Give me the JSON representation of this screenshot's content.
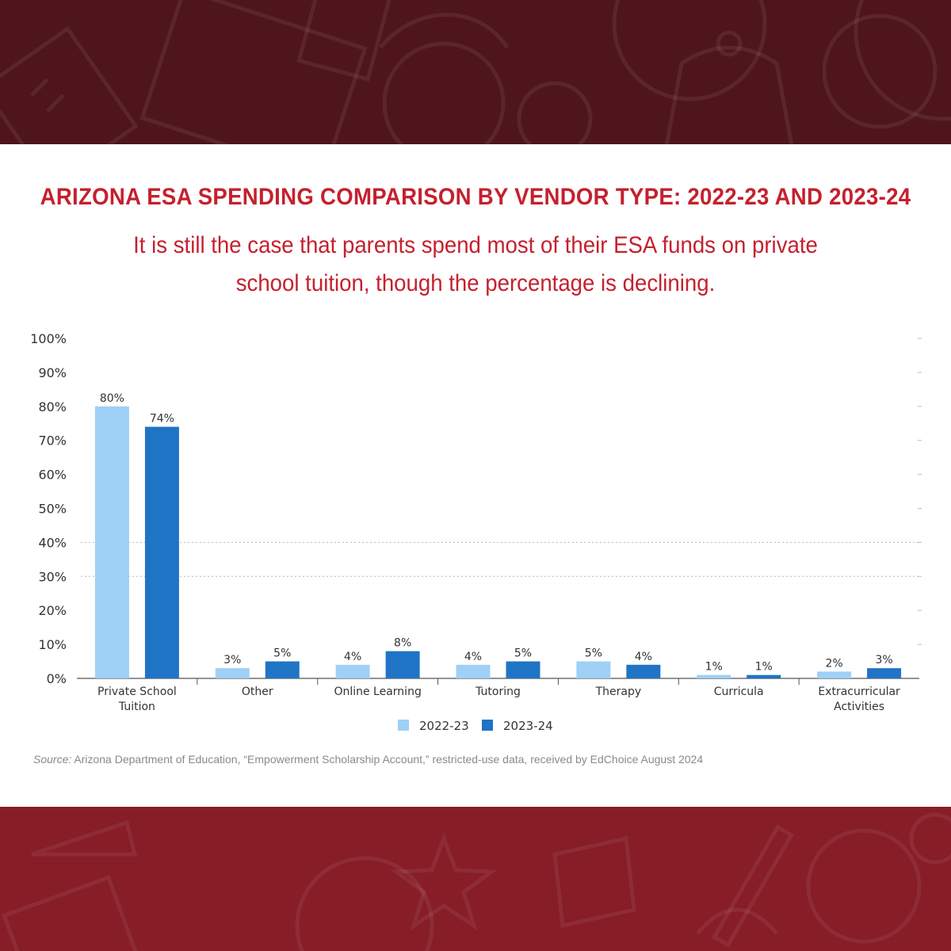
{
  "header": {
    "title": "ARIZONA ESA SPENDING COMPARISON BY VENDOR TYPE: 2022-23 AND 2023-24",
    "subtitle": "It is still the case that parents spend most of their ESA funds on private school tuition, though the percentage is declining."
  },
  "colors": {
    "top_band": "#4e151d",
    "bottom_band": "#861d27",
    "title": "#c5202e",
    "series_2022": "#9fd0f5",
    "series_2023": "#2074c6"
  },
  "chart_data": {
    "type": "bar",
    "title": "ARIZONA ESA SPENDING COMPARISON BY VENDOR TYPE: 2022-23 AND 2023-24",
    "categories": [
      [
        "Private School",
        "Tuition"
      ],
      [
        "Other"
      ],
      [
        "Online Learning"
      ],
      [
        "Tutoring"
      ],
      [
        "Therapy"
      ],
      [
        "Curricula"
      ],
      [
        "Extracurricular",
        "Activities"
      ]
    ],
    "series": [
      {
        "name": "2022-23",
        "color": "#9fd0f5",
        "values": [
          80,
          3,
          4,
          4,
          5,
          1,
          2
        ],
        "labels": [
          "80%",
          "3%",
          "4%",
          "4%",
          "5%",
          "1%",
          "2%"
        ]
      },
      {
        "name": "2023-24",
        "color": "#2074c6",
        "values": [
          74,
          5,
          8,
          5,
          4,
          1,
          3
        ],
        "labels": [
          "74%",
          "5%",
          "8%",
          "5%",
          "4%",
          "1%",
          "3%"
        ]
      }
    ],
    "ylim": [
      0,
      100
    ],
    "yticks": [
      "0%",
      "10%",
      "20%",
      "30%",
      "40%",
      "50%",
      "60%",
      "70%",
      "80%",
      "90%",
      "100%"
    ],
    "xlabel": "",
    "ylabel": "",
    "grid": "dotted horizontal at 30% and 40%",
    "legend_position": "bottom-center"
  },
  "source": {
    "label": "Source:",
    "text": " Arizona Department of Education, “Empowerment Scholarship Account,” restricted-use data, received by EdChoice August 2024"
  }
}
